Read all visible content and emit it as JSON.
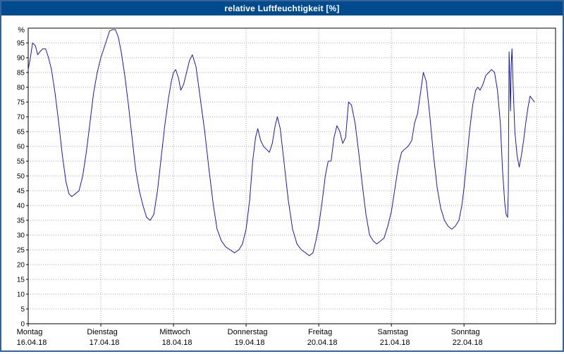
{
  "window": {
    "title": "relative Luftfeuchtigkeit [%]"
  },
  "colors": {
    "title_bar": "#004b8d",
    "window_border": "#31639c",
    "line": "#1c1ca6",
    "grid": "#aaaaaa",
    "axis": "#000000",
    "background": "#ffffff"
  },
  "chart_data": {
    "type": "line",
    "title": "relative Luftfeuchtigkeit [%]",
    "ylabel": "%",
    "xlabel": "",
    "ylim": [
      0,
      100
    ],
    "y_tick_step": 5,
    "y_tick_min": 0,
    "y_tick_max": 95,
    "xlim_days": [
      0,
      7.26
    ],
    "grid": true,
    "legend": "none",
    "days": [
      {
        "name": "Montag",
        "date": "16.04.18"
      },
      {
        "name": "Dienstag",
        "date": "17.04.18"
      },
      {
        "name": "Mittwoch",
        "date": "18.04.18"
      },
      {
        "name": "Donnerstag",
        "date": "19.04.18"
      },
      {
        "name": "Freitag",
        "date": "20.04.18"
      },
      {
        "name": "Samstag",
        "date": "21.04.18"
      },
      {
        "name": "Sonntag",
        "date": "22.04.18"
      }
    ],
    "series": [
      {
        "name": "relative Luftfeuchtigkeit [%]",
        "color": "#1c1ca6",
        "points_day_value": [
          [
            0.0,
            86
          ],
          [
            0.03,
            90
          ],
          [
            0.06,
            95
          ],
          [
            0.1,
            94
          ],
          [
            0.13,
            91
          ],
          [
            0.16,
            92
          ],
          [
            0.2,
            93
          ],
          [
            0.24,
            93
          ],
          [
            0.28,
            90
          ],
          [
            0.32,
            86
          ],
          [
            0.37,
            78
          ],
          [
            0.42,
            68
          ],
          [
            0.47,
            57
          ],
          [
            0.52,
            48
          ],
          [
            0.56,
            44
          ],
          [
            0.6,
            43
          ],
          [
            0.65,
            44
          ],
          [
            0.7,
            45
          ],
          [
            0.75,
            50
          ],
          [
            0.8,
            58
          ],
          [
            0.85,
            68
          ],
          [
            0.9,
            78
          ],
          [
            0.95,
            85
          ],
          [
            1.0,
            90
          ],
          [
            1.04,
            93
          ],
          [
            1.08,
            96
          ],
          [
            1.12,
            99
          ],
          [
            1.16,
            99.5
          ],
          [
            1.2,
            99.5
          ],
          [
            1.24,
            97
          ],
          [
            1.28,
            92
          ],
          [
            1.33,
            84
          ],
          [
            1.38,
            74
          ],
          [
            1.43,
            63
          ],
          [
            1.48,
            52
          ],
          [
            1.53,
            45
          ],
          [
            1.58,
            40
          ],
          [
            1.63,
            36
          ],
          [
            1.68,
            35
          ],
          [
            1.73,
            37
          ],
          [
            1.78,
            45
          ],
          [
            1.83,
            56
          ],
          [
            1.88,
            67
          ],
          [
            1.93,
            76
          ],
          [
            1.97,
            82
          ],
          [
            2.0,
            85
          ],
          [
            2.03,
            86
          ],
          [
            2.07,
            83
          ],
          [
            2.1,
            79
          ],
          [
            2.14,
            81
          ],
          [
            2.18,
            85
          ],
          [
            2.22,
            89
          ],
          [
            2.26,
            91
          ],
          [
            2.31,
            87
          ],
          [
            2.37,
            76
          ],
          [
            2.43,
            65
          ],
          [
            2.49,
            52
          ],
          [
            2.55,
            40
          ],
          [
            2.6,
            32
          ],
          [
            2.66,
            28
          ],
          [
            2.72,
            26
          ],
          [
            2.78,
            25
          ],
          [
            2.84,
            24
          ],
          [
            2.9,
            25
          ],
          [
            2.95,
            27
          ],
          [
            3.0,
            32
          ],
          [
            3.05,
            42
          ],
          [
            3.09,
            55
          ],
          [
            3.13,
            63
          ],
          [
            3.16,
            66
          ],
          [
            3.2,
            62
          ],
          [
            3.24,
            60
          ],
          [
            3.28,
            59
          ],
          [
            3.32,
            58
          ],
          [
            3.36,
            61
          ],
          [
            3.4,
            67
          ],
          [
            3.43,
            70
          ],
          [
            3.47,
            66
          ],
          [
            3.52,
            55
          ],
          [
            3.58,
            42
          ],
          [
            3.64,
            32
          ],
          [
            3.7,
            27
          ],
          [
            3.76,
            25
          ],
          [
            3.82,
            24
          ],
          [
            3.87,
            23
          ],
          [
            3.92,
            24
          ],
          [
            3.96,
            28
          ],
          [
            4.0,
            33
          ],
          [
            4.05,
            42
          ],
          [
            4.09,
            50
          ],
          [
            4.13,
            55
          ],
          [
            4.17,
            55
          ],
          [
            4.21,
            63
          ],
          [
            4.25,
            67
          ],
          [
            4.29,
            65
          ],
          [
            4.33,
            61
          ],
          [
            4.37,
            63
          ],
          [
            4.41,
            75
          ],
          [
            4.45,
            74
          ],
          [
            4.5,
            68
          ],
          [
            4.55,
            58
          ],
          [
            4.6,
            47
          ],
          [
            4.65,
            37
          ],
          [
            4.7,
            30
          ],
          [
            4.75,
            28
          ],
          [
            4.8,
            27
          ],
          [
            4.85,
            28
          ],
          [
            4.9,
            29
          ],
          [
            4.95,
            33
          ],
          [
            5.0,
            38
          ],
          [
            5.05,
            46
          ],
          [
            5.1,
            54
          ],
          [
            5.14,
            58
          ],
          [
            5.18,
            59
          ],
          [
            5.23,
            60
          ],
          [
            5.28,
            62
          ],
          [
            5.32,
            68
          ],
          [
            5.36,
            71
          ],
          [
            5.4,
            78
          ],
          [
            5.44,
            85
          ],
          [
            5.48,
            82
          ],
          [
            5.53,
            70
          ],
          [
            5.58,
            57
          ],
          [
            5.63,
            46
          ],
          [
            5.68,
            39
          ],
          [
            5.73,
            35
          ],
          [
            5.78,
            33
          ],
          [
            5.83,
            32
          ],
          [
            5.88,
            33
          ],
          [
            5.93,
            35
          ],
          [
            5.97,
            40
          ],
          [
            6.0,
            46
          ],
          [
            6.04,
            56
          ],
          [
            6.08,
            66
          ],
          [
            6.12,
            74
          ],
          [
            6.16,
            79
          ],
          [
            6.19,
            80
          ],
          [
            6.22,
            79
          ],
          [
            6.26,
            81
          ],
          [
            6.3,
            84
          ],
          [
            6.34,
            85
          ],
          [
            6.38,
            86
          ],
          [
            6.42,
            85
          ],
          [
            6.46,
            79
          ],
          [
            6.5,
            68
          ],
          [
            6.53,
            52
          ],
          [
            6.56,
            41
          ],
          [
            6.58,
            37
          ],
          [
            6.6,
            36
          ],
          [
            6.61,
            45
          ],
          [
            6.62,
            92
          ],
          [
            6.63,
            84
          ],
          [
            6.64,
            72
          ],
          [
            6.65,
            88
          ],
          [
            6.66,
            93
          ],
          [
            6.68,
            78
          ],
          [
            6.7,
            65
          ],
          [
            6.73,
            57
          ],
          [
            6.76,
            53
          ],
          [
            6.79,
            57
          ],
          [
            6.82,
            62
          ],
          [
            6.85,
            68
          ],
          [
            6.88,
            73
          ],
          [
            6.91,
            77
          ],
          [
            6.94,
            76
          ],
          [
            6.97,
            75
          ]
        ]
      }
    ]
  }
}
